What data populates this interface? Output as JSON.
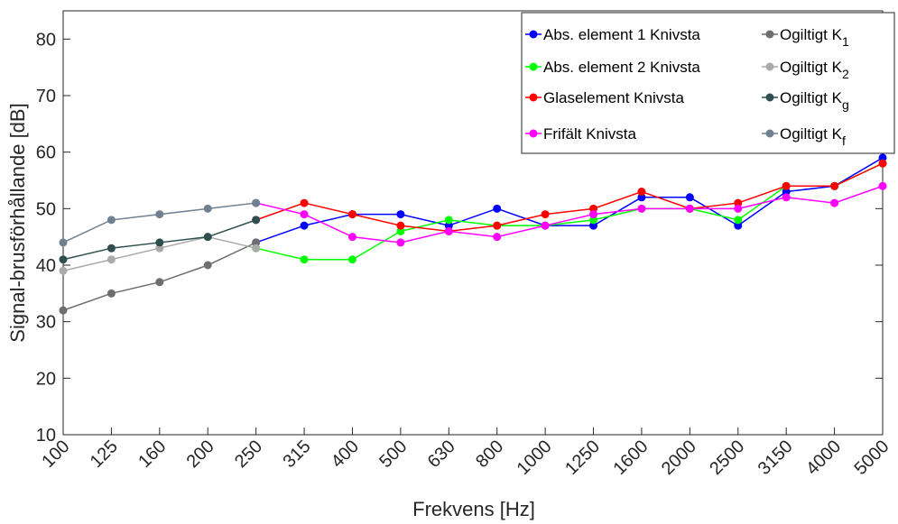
{
  "chart_data": {
    "type": "line",
    "xlabel": "Frekvens [Hz]",
    "ylabel": "Signal-brusförhållande [dB]",
    "categories": [
      "100",
      "125",
      "160",
      "200",
      "250",
      "315",
      "400",
      "500",
      "630",
      "800",
      "1000",
      "1250",
      "1600",
      "2000",
      "2500",
      "3150",
      "4000",
      "5000"
    ],
    "ylim": [
      10,
      85
    ],
    "yticks": [
      10,
      20,
      30,
      40,
      50,
      60,
      70,
      80
    ],
    "grid": false,
    "legend": "upper right",
    "series": [
      {
        "name": "Abs. element 1 Knivsta",
        "color": "#0000ff",
        "values": [
          null,
          null,
          null,
          null,
          44,
          47,
          49,
          49,
          47,
          50,
          47,
          47,
          52,
          52,
          47,
          53,
          54,
          59
        ]
      },
      {
        "name": "Abs. element 2 Knivsta",
        "color": "#00ff00",
        "values": [
          null,
          null,
          null,
          null,
          43,
          41,
          41,
          46,
          48,
          47,
          47,
          48,
          50,
          50,
          48,
          54,
          54,
          58
        ]
      },
      {
        "name": "Glaselement Knivsta",
        "color": "#ff0000",
        "values": [
          null,
          null,
          null,
          null,
          48,
          51,
          49,
          47,
          46,
          47,
          49,
          50,
          53,
          50,
          51,
          54,
          54,
          58
        ]
      },
      {
        "name": "Frifält Knivsta",
        "color": "#ff00ff",
        "values": [
          null,
          null,
          null,
          null,
          51,
          49,
          45,
          44,
          46,
          45,
          47,
          49,
          50,
          50,
          50,
          52,
          51,
          54
        ]
      },
      {
        "name": "Ogiltigt K",
        "sub": "1",
        "color": "#6e6e6e",
        "values": [
          32,
          35,
          37,
          40,
          44,
          null,
          null,
          null,
          null,
          null,
          null,
          null,
          null,
          null,
          null,
          null,
          null,
          null
        ]
      },
      {
        "name": "Ogiltigt K",
        "sub": "2",
        "color": "#aaaaaa",
        "values": [
          39,
          41,
          43,
          45,
          43,
          null,
          null,
          null,
          null,
          null,
          null,
          null,
          null,
          null,
          null,
          null,
          null,
          null
        ]
      },
      {
        "name": "Ogiltigt K",
        "sub": "g",
        "color": "#2f4f4f",
        "values": [
          41,
          43,
          44,
          45,
          48,
          null,
          null,
          null,
          null,
          null,
          null,
          null,
          null,
          null,
          null,
          null,
          null,
          null
        ]
      },
      {
        "name": "Ogiltigt K",
        "sub": "f",
        "color": "#708090",
        "values": [
          44,
          48,
          49,
          50,
          51,
          null,
          null,
          null,
          null,
          null,
          null,
          null,
          null,
          null,
          null,
          null,
          null,
          null
        ]
      }
    ]
  }
}
